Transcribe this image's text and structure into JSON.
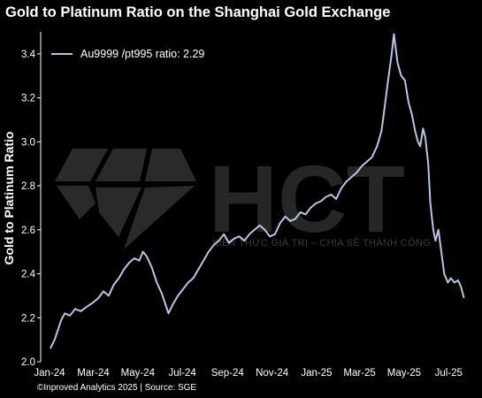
{
  "chart_data": {
    "type": "line",
    "title": "Gold to Platinum Ratio on the Shanghai Gold Exchange",
    "ylabel": "Gold to Platinum Ratio",
    "xlabel": "",
    "ylim": [
      2.0,
      3.5
    ],
    "yticks": [
      "2.0",
      "2.2",
      "2.4",
      "2.6",
      "2.8",
      "3.0",
      "3.2",
      "3.4"
    ],
    "xlim": [
      "2024-01-01",
      "2025-07-31"
    ],
    "xticks": [
      {
        "date": "2024-01-01",
        "label": "Jan-24"
      },
      {
        "date": "2024-03-01",
        "label": "Mar-24"
      },
      {
        "date": "2024-05-01",
        "label": "May-24"
      },
      {
        "date": "2024-07-01",
        "label": "Jul-24"
      },
      {
        "date": "2024-09-01",
        "label": "Sep-24"
      },
      {
        "date": "2024-11-01",
        "label": "Nov-24"
      },
      {
        "date": "2025-01-01",
        "label": "Jan-25"
      },
      {
        "date": "2025-03-01",
        "label": "Mar-25"
      },
      {
        "date": "2025-05-01",
        "label": "May-25"
      },
      {
        "date": "2025-07-01",
        "label": "Jul-25"
      }
    ],
    "grid": false,
    "legend_position": "top-left",
    "series": [
      {
        "name": "Au9999 /pt995 ratio: 2.29",
        "color": "#b4c7e7",
        "points": [
          [
            "2024-01-02",
            2.06
          ],
          [
            "2024-01-08",
            2.1
          ],
          [
            "2024-01-12",
            2.14
          ],
          [
            "2024-01-17",
            2.19
          ],
          [
            "2024-01-22",
            2.22
          ],
          [
            "2024-01-29",
            2.21
          ],
          [
            "2024-02-05",
            2.24
          ],
          [
            "2024-02-13",
            2.23
          ],
          [
            "2024-02-21",
            2.25
          ],
          [
            "2024-03-01",
            2.27
          ],
          [
            "2024-03-08",
            2.29
          ],
          [
            "2024-03-15",
            2.32
          ],
          [
            "2024-03-22",
            2.3
          ],
          [
            "2024-03-29",
            2.35
          ],
          [
            "2024-04-05",
            2.38
          ],
          [
            "2024-04-12",
            2.42
          ],
          [
            "2024-04-19",
            2.45
          ],
          [
            "2024-04-26",
            2.47
          ],
          [
            "2024-05-03",
            2.46
          ],
          [
            "2024-05-08",
            2.5
          ],
          [
            "2024-05-13",
            2.48
          ],
          [
            "2024-05-20",
            2.43
          ],
          [
            "2024-05-27",
            2.36
          ],
          [
            "2024-06-03",
            2.31
          ],
          [
            "2024-06-07",
            2.27
          ],
          [
            "2024-06-12",
            2.22
          ],
          [
            "2024-06-18",
            2.26
          ],
          [
            "2024-06-25",
            2.3
          ],
          [
            "2024-07-02",
            2.33
          ],
          [
            "2024-07-09",
            2.36
          ],
          [
            "2024-07-16",
            2.38
          ],
          [
            "2024-07-23",
            2.42
          ],
          [
            "2024-07-30",
            2.46
          ],
          [
            "2024-08-06",
            2.5
          ],
          [
            "2024-08-13",
            2.53
          ],
          [
            "2024-08-20",
            2.55
          ],
          [
            "2024-08-27",
            2.58
          ],
          [
            "2024-09-03",
            2.54
          ],
          [
            "2024-09-10",
            2.56
          ],
          [
            "2024-09-17",
            2.57
          ],
          [
            "2024-09-24",
            2.55
          ],
          [
            "2024-10-01",
            2.58
          ],
          [
            "2024-10-08",
            2.6
          ],
          [
            "2024-10-15",
            2.62
          ],
          [
            "2024-10-22",
            2.6
          ],
          [
            "2024-10-29",
            2.57
          ],
          [
            "2024-11-05",
            2.58
          ],
          [
            "2024-11-12",
            2.63
          ],
          [
            "2024-11-19",
            2.66
          ],
          [
            "2024-11-26",
            2.64
          ],
          [
            "2024-12-03",
            2.65
          ],
          [
            "2024-12-10",
            2.68
          ],
          [
            "2024-12-17",
            2.67
          ],
          [
            "2024-12-24",
            2.7
          ],
          [
            "2024-12-31",
            2.72
          ],
          [
            "2025-01-07",
            2.73
          ],
          [
            "2025-01-14",
            2.75
          ],
          [
            "2025-01-21",
            2.76
          ],
          [
            "2025-01-28",
            2.74
          ],
          [
            "2025-02-04",
            2.79
          ],
          [
            "2025-02-11",
            2.82
          ],
          [
            "2025-02-18",
            2.84
          ],
          [
            "2025-02-25",
            2.86
          ],
          [
            "2025-03-04",
            2.89
          ],
          [
            "2025-03-11",
            2.91
          ],
          [
            "2025-03-18",
            2.93
          ],
          [
            "2025-03-25",
            2.98
          ],
          [
            "2025-03-31",
            3.05
          ],
          [
            "2025-04-04",
            3.15
          ],
          [
            "2025-04-09",
            3.28
          ],
          [
            "2025-04-14",
            3.4
          ],
          [
            "2025-04-17",
            3.49
          ],
          [
            "2025-04-22",
            3.36
          ],
          [
            "2025-04-27",
            3.3
          ],
          [
            "2025-05-02",
            3.28
          ],
          [
            "2025-05-07",
            3.18
          ],
          [
            "2025-05-12",
            3.12
          ],
          [
            "2025-05-16",
            3.05
          ],
          [
            "2025-05-20",
            3.0
          ],
          [
            "2025-05-23",
            2.98
          ],
          [
            "2025-05-27",
            3.06
          ],
          [
            "2025-05-30",
            3.02
          ],
          [
            "2025-06-03",
            2.9
          ],
          [
            "2025-06-06",
            2.72
          ],
          [
            "2025-06-10",
            2.6
          ],
          [
            "2025-06-13",
            2.55
          ],
          [
            "2025-06-17",
            2.6
          ],
          [
            "2025-06-21",
            2.5
          ],
          [
            "2025-06-25",
            2.4
          ],
          [
            "2025-06-30",
            2.36
          ],
          [
            "2025-07-04",
            2.38
          ],
          [
            "2025-07-09",
            2.36
          ],
          [
            "2025-07-14",
            2.37
          ],
          [
            "2025-07-18",
            2.34
          ],
          [
            "2025-07-22",
            2.29
          ]
        ]
      }
    ]
  },
  "watermark": {
    "brand": "HCT",
    "tagline": "KIẾN THỨC GIÁ TRỊ – CHIA SẺ THÀNH CÔNG"
  },
  "footer": {
    "source": "©Inproved Analytics 2025 | Source: SGE"
  }
}
